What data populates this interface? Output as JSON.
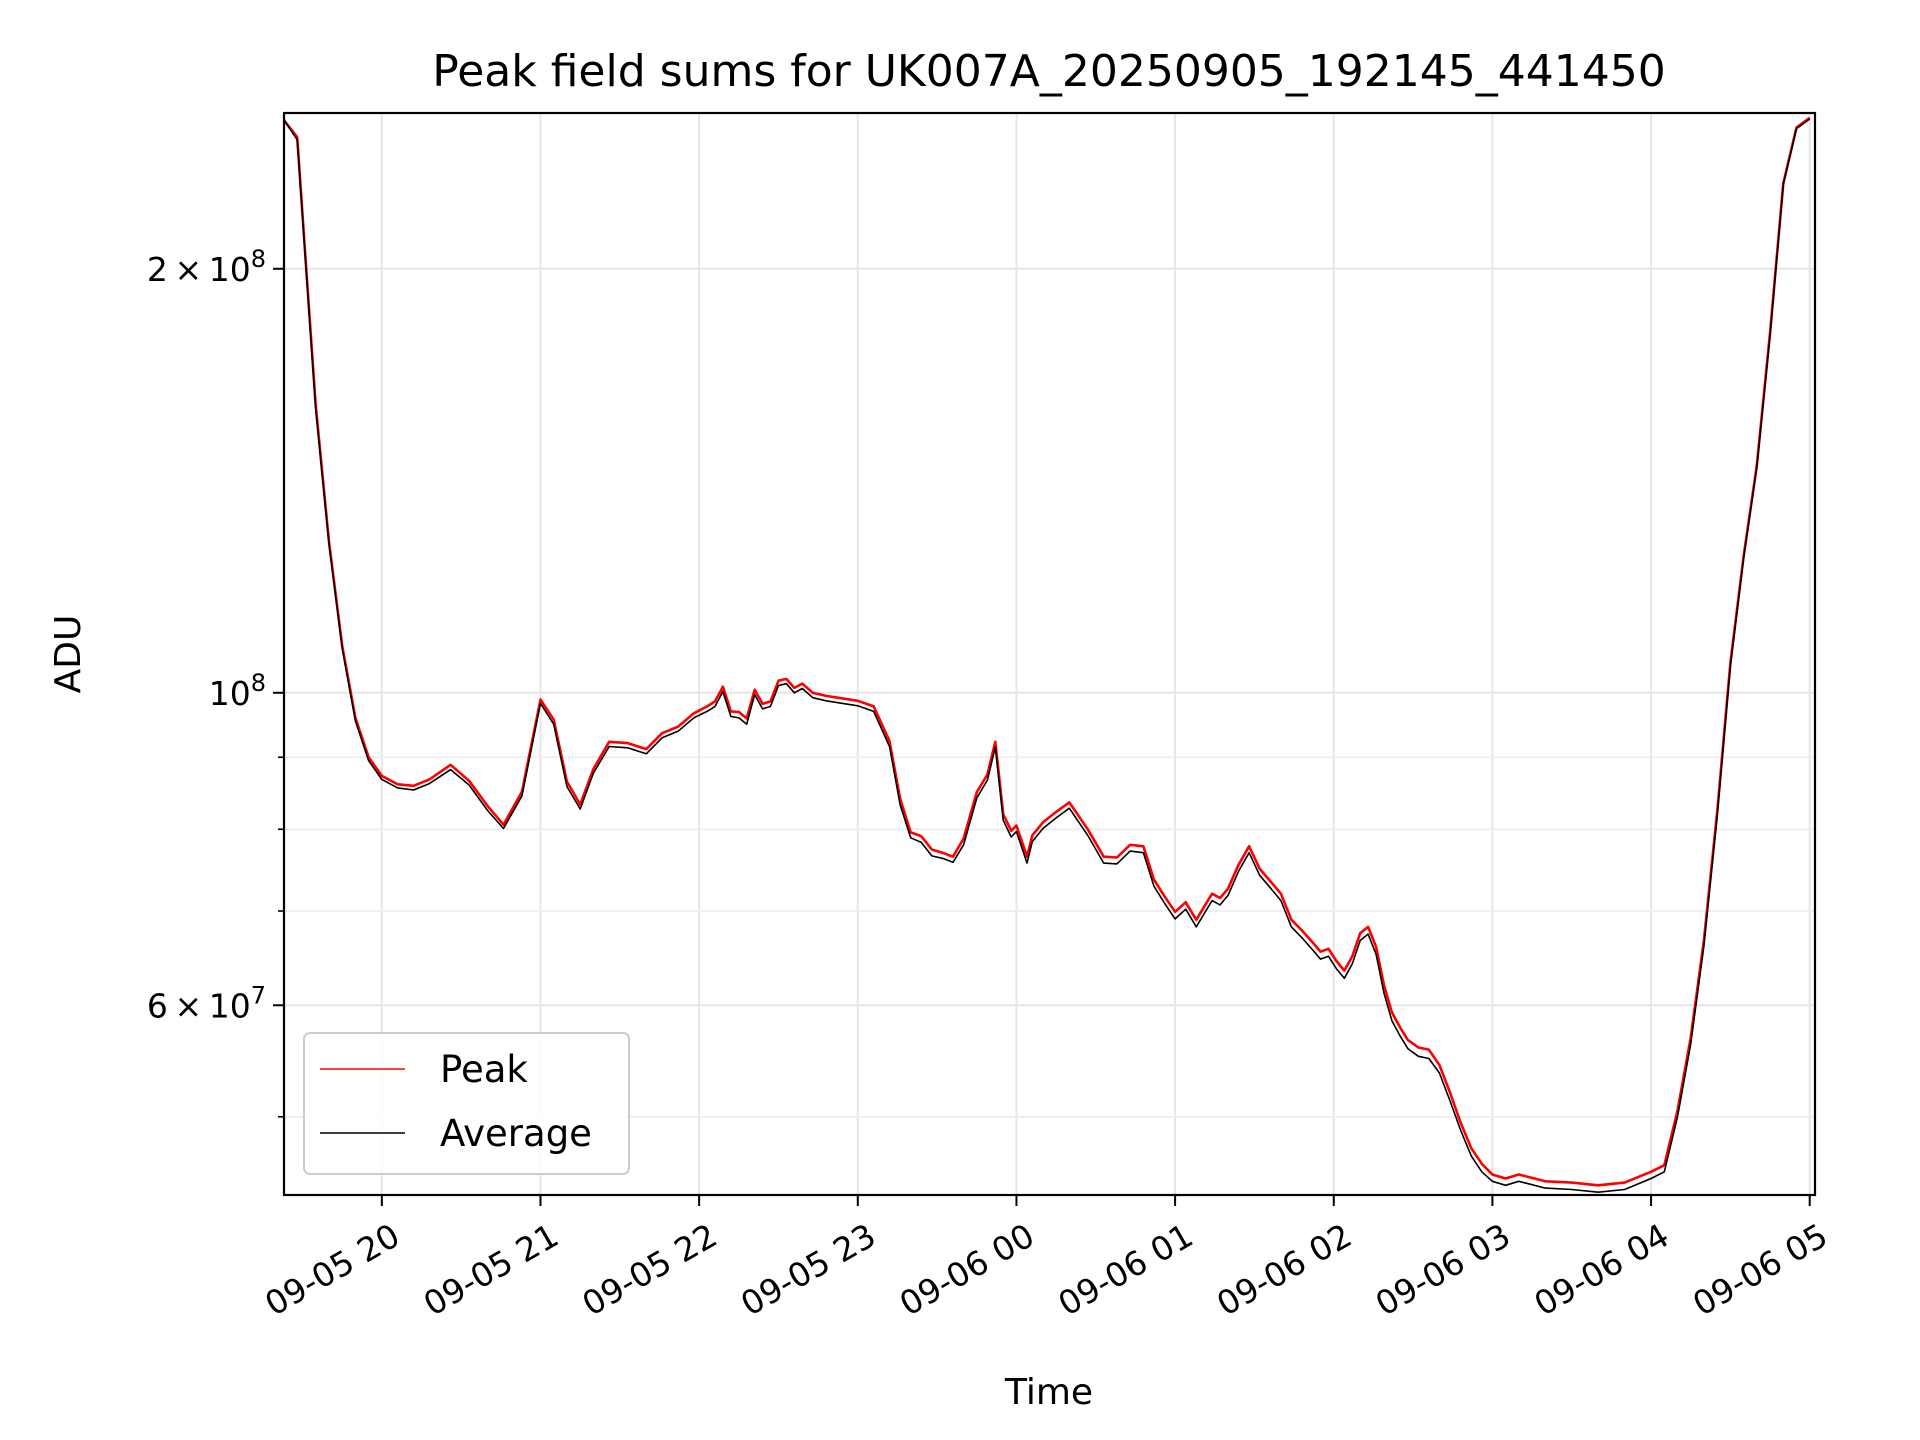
{
  "chart_data": {
    "type": "line",
    "title": "Peak field sums for UK007A_20250905_192145_441450",
    "xlabel": "Time",
    "ylabel": "ADU",
    "x_type": "datetime",
    "xlim": [
      "2025-09-05 19:23",
      "2025-09-06 05:02"
    ],
    "ylim": [
      44000000,
      258000000
    ],
    "yscale": "log",
    "grid": true,
    "legend_position": "lower-left",
    "x_ticks": [
      {
        "value": "2025-09-05 20:00",
        "label": "09-05 20"
      },
      {
        "value": "2025-09-05 21:00",
        "label": "09-05 21"
      },
      {
        "value": "2025-09-05 22:00",
        "label": "09-05 22"
      },
      {
        "value": "2025-09-05 23:00",
        "label": "09-05 23"
      },
      {
        "value": "2025-09-06 00:00",
        "label": "09-06 00"
      },
      {
        "value": "2025-09-06 01:00",
        "label": "09-06 01"
      },
      {
        "value": "2025-09-06 02:00",
        "label": "09-06 02"
      },
      {
        "value": "2025-09-06 03:00",
        "label": "09-06 03"
      },
      {
        "value": "2025-09-06 04:00",
        "label": "09-06 04"
      },
      {
        "value": "2025-09-06 05:00",
        "label": "09-06 05"
      }
    ],
    "y_major_ticks": [
      {
        "value": 60000000,
        "mantissa": "6",
        "exponent": "7"
      },
      {
        "value": 100000000,
        "mantissa": "",
        "exponent": "8"
      },
      {
        "value": 200000000,
        "mantissa": "2",
        "exponent": "8"
      }
    ],
    "y_minor_ticks": [
      50000000,
      70000000,
      80000000,
      90000000,
      300000000
    ],
    "series": [
      {
        "name": "Peak",
        "color": "#ff0000",
        "x": [
          "2025-09-05 19:23",
          "2025-09-05 19:28",
          "2025-09-05 19:31",
          "2025-09-05 19:35",
          "2025-09-05 19:40",
          "2025-09-05 19:45",
          "2025-09-05 19:50",
          "2025-09-05 19:55",
          "2025-09-05 20:00",
          "2025-09-05 20:06",
          "2025-09-05 20:12",
          "2025-09-05 20:18",
          "2025-09-05 20:26",
          "2025-09-05 20:33",
          "2025-09-05 20:40",
          "2025-09-05 20:46",
          "2025-09-05 20:53",
          "2025-09-05 21:00",
          "2025-09-05 21:05",
          "2025-09-05 21:10",
          "2025-09-05 21:15",
          "2025-09-05 21:20",
          "2025-09-05 21:26",
          "2025-09-05 21:33",
          "2025-09-05 21:40",
          "2025-09-05 21:46",
          "2025-09-05 21:52",
          "2025-09-05 21:58",
          "2025-09-05 22:03",
          "2025-09-05 22:06",
          "2025-09-05 22:09",
          "2025-09-05 22:12",
          "2025-09-05 22:15",
          "2025-09-05 22:18",
          "2025-09-05 22:21",
          "2025-09-05 22:24",
          "2025-09-05 22:27",
          "2025-09-05 22:30",
          "2025-09-05 22:33",
          "2025-09-05 22:36",
          "2025-09-05 22:39",
          "2025-09-05 22:43",
          "2025-09-05 22:48",
          "2025-09-05 22:54",
          "2025-09-05 23:00",
          "2025-09-05 23:06",
          "2025-09-05 23:12",
          "2025-09-05 23:16",
          "2025-09-05 23:20",
          "2025-09-05 23:24",
          "2025-09-05 23:28",
          "2025-09-05 23:32",
          "2025-09-05 23:36",
          "2025-09-05 23:40",
          "2025-09-05 23:45",
          "2025-09-05 23:49",
          "2025-09-05 23:52",
          "2025-09-05 23:55",
          "2025-09-05 23:58",
          "2025-09-06 00:00",
          "2025-09-06 00:02",
          "2025-09-06 00:04",
          "2025-09-06 00:06",
          "2025-09-06 00:10",
          "2025-09-06 00:15",
          "2025-09-06 00:20",
          "2025-09-06 00:27",
          "2025-09-06 00:33",
          "2025-09-06 00:38",
          "2025-09-06 00:43",
          "2025-09-06 00:48",
          "2025-09-06 00:52",
          "2025-09-06 00:56",
          "2025-09-06 01:00",
          "2025-09-06 01:04",
          "2025-09-06 01:08",
          "2025-09-06 01:11",
          "2025-09-06 01:14",
          "2025-09-06 01:17",
          "2025-09-06 01:20",
          "2025-09-06 01:24",
          "2025-09-06 01:28",
          "2025-09-06 01:32",
          "2025-09-06 01:36",
          "2025-09-06 01:40",
          "2025-09-06 01:44",
          "2025-09-06 01:48",
          "2025-09-06 01:52",
          "2025-09-06 01:55",
          "2025-09-06 01:58",
          "2025-09-06 02:01",
          "2025-09-06 02:04",
          "2025-09-06 02:07",
          "2025-09-06 02:10",
          "2025-09-06 02:13",
          "2025-09-06 02:16",
          "2025-09-06 02:19",
          "2025-09-06 02:22",
          "2025-09-06 02:25",
          "2025-09-06 02:28",
          "2025-09-06 02:32",
          "2025-09-06 02:36",
          "2025-09-06 02:40",
          "2025-09-06 02:44",
          "2025-09-06 02:48",
          "2025-09-06 02:52",
          "2025-09-06 02:56",
          "2025-09-06 03:00",
          "2025-09-06 03:05",
          "2025-09-06 03:10",
          "2025-09-06 03:20",
          "2025-09-06 03:30",
          "2025-09-06 03:40",
          "2025-09-06 03:50",
          "2025-09-06 04:00",
          "2025-09-06 04:05",
          "2025-09-06 04:10",
          "2025-09-06 04:15",
          "2025-09-06 04:20",
          "2025-09-06 04:25",
          "2025-09-06 04:30",
          "2025-09-06 04:35",
          "2025-09-06 04:40",
          "2025-09-06 04:45",
          "2025-09-06 04:50",
          "2025-09-06 04:55",
          "2025-09-06 05:00"
        ],
        "values": [
          255000000,
          248000000,
          205000000,
          160000000,
          128000000,
          108000000,
          96000000,
          90000000,
          87300000,
          86100000,
          85900000,
          86800000,
          88900000,
          86600000,
          83100000,
          80600000,
          85100000,
          98900000,
          95700000,
          86500000,
          83300000,
          88300000,
          92300000,
          92100000,
          91200000,
          93600000,
          94600000,
          96700000,
          97800000,
          98600000,
          101000000,
          97000000,
          96900000,
          95900000,
          100500000,
          98200000,
          98600000,
          102000000,
          102300000,
          100800000,
          101500000,
          100000000,
          99500000,
          99100000,
          98700000,
          97800000,
          92400000,
          84100000,
          79600000,
          79100000,
          77400000,
          77000000,
          76500000,
          78800000,
          85000000,
          87500000,
          92300000,
          82000000,
          79800000,
          80500000,
          78500000,
          76500000,
          79200000,
          80900000,
          82300000,
          83600000,
          80000000,
          76500000,
          76400000,
          78000000,
          77800000,
          73700000,
          71700000,
          69900000,
          71000000,
          69000000,
          70500000,
          72000000,
          71500000,
          72600000,
          75500000,
          77800000,
          75000000,
          73500000,
          72000000,
          69000000,
          67800000,
          66500000,
          65500000,
          65800000,
          64500000,
          63500000,
          65000000,
          67500000,
          68200000,
          66000000,
          62000000,
          59300000,
          57900000,
          56700000,
          56000000,
          55800000,
          54400000,
          52000000,
          49500000,
          47500000,
          46300000,
          45500000,
          45200000,
          45500000,
          45000000,
          44900000,
          44700000,
          44900000,
          45700000,
          46200000,
          50500000,
          56900000,
          66700000,
          82300000,
          105000000,
          125000000,
          145000000,
          180000000,
          230000000,
          252000000,
          256000000
        ]
      },
      {
        "name": "Average",
        "color": "#000000",
        "x": [
          "2025-09-05 19:23",
          "2025-09-05 19:28",
          "2025-09-05 19:31",
          "2025-09-05 19:35",
          "2025-09-05 19:40",
          "2025-09-05 19:45",
          "2025-09-05 19:50",
          "2025-09-05 19:55",
          "2025-09-05 20:00",
          "2025-09-05 20:06",
          "2025-09-05 20:12",
          "2025-09-05 20:18",
          "2025-09-05 20:26",
          "2025-09-05 20:33",
          "2025-09-05 20:40",
          "2025-09-05 20:46",
          "2025-09-05 20:53",
          "2025-09-05 21:00",
          "2025-09-05 21:05",
          "2025-09-05 21:10",
          "2025-09-05 21:15",
          "2025-09-05 21:20",
          "2025-09-05 21:26",
          "2025-09-05 21:33",
          "2025-09-05 21:40",
          "2025-09-05 21:46",
          "2025-09-05 21:52",
          "2025-09-05 21:58",
          "2025-09-05 22:03",
          "2025-09-05 22:06",
          "2025-09-05 22:09",
          "2025-09-05 22:12",
          "2025-09-05 22:15",
          "2025-09-05 22:18",
          "2025-09-05 22:21",
          "2025-09-05 22:24",
          "2025-09-05 22:27",
          "2025-09-05 22:30",
          "2025-09-05 22:33",
          "2025-09-05 22:36",
          "2025-09-05 22:39",
          "2025-09-05 22:43",
          "2025-09-05 22:48",
          "2025-09-05 22:54",
          "2025-09-05 23:00",
          "2025-09-05 23:06",
          "2025-09-05 23:12",
          "2025-09-05 23:16",
          "2025-09-05 23:20",
          "2025-09-05 23:24",
          "2025-09-05 23:28",
          "2025-09-05 23:32",
          "2025-09-05 23:36",
          "2025-09-05 23:40",
          "2025-09-05 23:45",
          "2025-09-05 23:49",
          "2025-09-05 23:52",
          "2025-09-05 23:55",
          "2025-09-05 23:58",
          "2025-09-06 00:00",
          "2025-09-06 00:02",
          "2025-09-06 00:04",
          "2025-09-06 00:06",
          "2025-09-06 00:10",
          "2025-09-06 00:15",
          "2025-09-06 00:20",
          "2025-09-06 00:27",
          "2025-09-06 00:33",
          "2025-09-06 00:38",
          "2025-09-06 00:43",
          "2025-09-06 00:48",
          "2025-09-06 00:52",
          "2025-09-06 00:56",
          "2025-09-06 01:00",
          "2025-09-06 01:04",
          "2025-09-06 01:08",
          "2025-09-06 01:11",
          "2025-09-06 01:14",
          "2025-09-06 01:17",
          "2025-09-06 01:20",
          "2025-09-06 01:24",
          "2025-09-06 01:28",
          "2025-09-06 01:32",
          "2025-09-06 01:36",
          "2025-09-06 01:40",
          "2025-09-06 01:44",
          "2025-09-06 01:48",
          "2025-09-06 01:52",
          "2025-09-06 01:55",
          "2025-09-06 01:58",
          "2025-09-06 02:01",
          "2025-09-06 02:04",
          "2025-09-06 02:07",
          "2025-09-06 02:10",
          "2025-09-06 02:13",
          "2025-09-06 02:16",
          "2025-09-06 02:19",
          "2025-09-06 02:22",
          "2025-09-06 02:25",
          "2025-09-06 02:28",
          "2025-09-06 02:32",
          "2025-09-06 02:36",
          "2025-09-06 02:40",
          "2025-09-06 02:44",
          "2025-09-06 02:48",
          "2025-09-06 02:52",
          "2025-09-06 02:56",
          "2025-09-06 03:00",
          "2025-09-06 03:05",
          "2025-09-06 03:10",
          "2025-09-06 03:20",
          "2025-09-06 03:30",
          "2025-09-06 03:40",
          "2025-09-06 03:50",
          "2025-09-06 04:00",
          "2025-09-06 04:05",
          "2025-09-06 04:10",
          "2025-09-06 04:15",
          "2025-09-06 04:20",
          "2025-09-06 04:25",
          "2025-09-06 04:30",
          "2025-09-06 04:35",
          "2025-09-06 04:40",
          "2025-09-06 04:45",
          "2025-09-06 04:50",
          "2025-09-06 04:55",
          "2025-09-06 05:00"
        ],
        "values": [
          255000000,
          247000000,
          204000000,
          159000000,
          127500000,
          107500000,
          95500000,
          89500000,
          86800000,
          85600000,
          85300000,
          86200000,
          88200000,
          86000000,
          82500000,
          80100000,
          84500000,
          98300000,
          95000000,
          85800000,
          82700000,
          87700000,
          91600000,
          91400000,
          90500000,
          92900000,
          93900000,
          96000000,
          97000000,
          97800000,
          100200000,
          96200000,
          96000000,
          95000000,
          99700000,
          97400000,
          97800000,
          101200000,
          101500000,
          100000000,
          100700000,
          99200000,
          98700000,
          98300000,
          97900000,
          97000000,
          91600000,
          83300000,
          78900000,
          78300000,
          76600000,
          76300000,
          75800000,
          78000000,
          84200000,
          86700000,
          91500000,
          81200000,
          79000000,
          79700000,
          77700000,
          75700000,
          78400000,
          80100000,
          81500000,
          82800000,
          79200000,
          75700000,
          75600000,
          77200000,
          77000000,
          72900000,
          70900000,
          69100000,
          70200000,
          68200000,
          69700000,
          71200000,
          70700000,
          71800000,
          74700000,
          77000000,
          74200000,
          72700000,
          71200000,
          68200000,
          67000000,
          65700000,
          64700000,
          65000000,
          63700000,
          62700000,
          64200000,
          66700000,
          67400000,
          65200000,
          61200000,
          58500000,
          57100000,
          55900000,
          55200000,
          55000000,
          53700000,
          51300000,
          48900000,
          46900000,
          45700000,
          45000000,
          44700000,
          45000000,
          44500000,
          44400000,
          44200000,
          44400000,
          45200000,
          45700000,
          50000000,
          56300000,
          66100000,
          81700000,
          104500000,
          124500000,
          144500000,
          179000000,
          229500000,
          251500000,
          255500000
        ]
      }
    ]
  }
}
